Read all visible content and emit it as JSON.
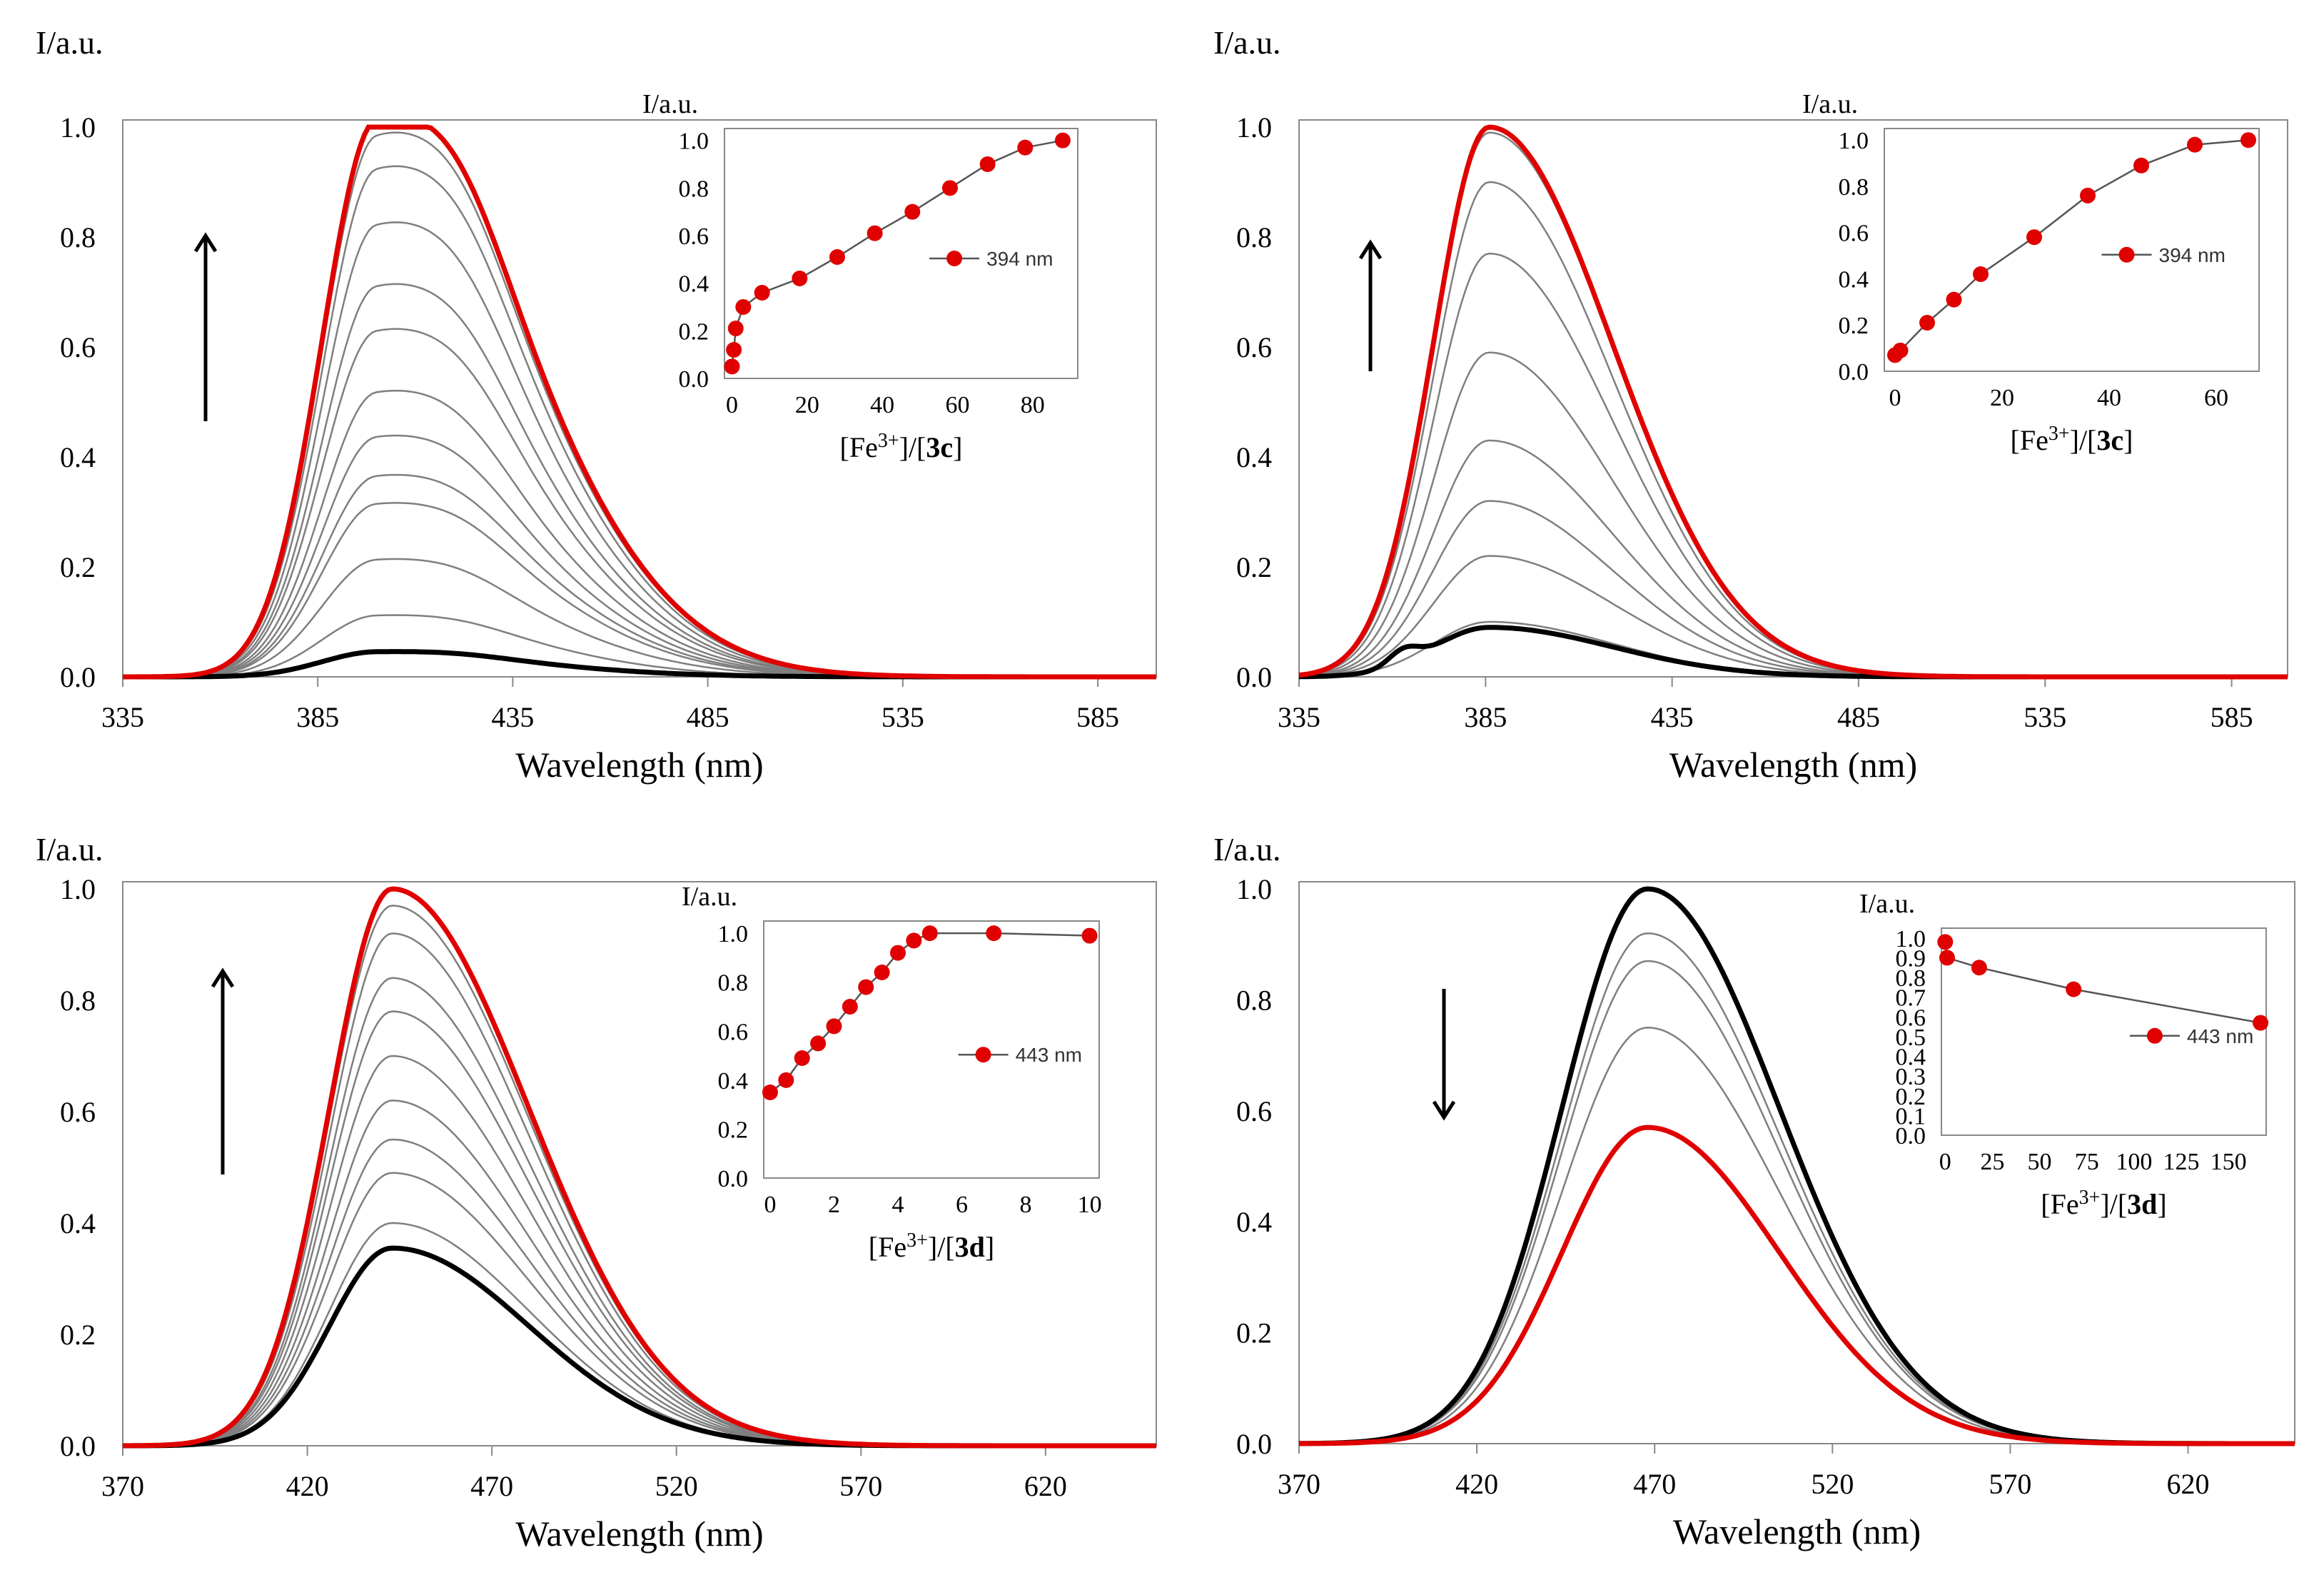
{
  "chart_data": [
    {
      "type": "line",
      "panel": "top-left",
      "ylabel": "I/a.u.",
      "xlabel": "Wavelength",
      "xunit": "(nm)",
      "xlim": [
        335,
        600
      ],
      "ylim": [
        0,
        1.0
      ],
      "xticks": [
        "335",
        "385",
        "435",
        "485",
        "535",
        "585"
      ],
      "yticks": [
        "0.0",
        "0.2",
        "0.4",
        "0.6",
        "0.8",
        "1.0"
      ],
      "arrow": "up",
      "spectra": {
        "initial_peak": 0.045,
        "final_peak": 1.0,
        "intermediate_peaks": [
          0.11,
          0.21,
          0.31,
          0.36,
          0.43,
          0.51,
          0.62,
          0.7,
          0.81,
          0.91,
          0.97
        ],
        "peak_wavelength": 400
      },
      "inset": {
        "ylabel": "I/a.u.",
        "xlabel_prefix": "[Fe",
        "xlabel_sup": "3+",
        "xlabel_mid": "]/[",
        "xlabel_bold": "3c",
        "xlabel_suffix": "]",
        "legend": "394 nm",
        "xlim": [
          -2,
          92
        ],
        "ylim": [
          0,
          1.05
        ],
        "xticks": [
          "0",
          "20",
          "40",
          "60",
          "80"
        ],
        "yticks": [
          "0.0",
          "0.2",
          "0.4",
          "0.6",
          "0.8",
          "1.0"
        ],
        "x": [
          0,
          0.5,
          1,
          3,
          8,
          18,
          28,
          38,
          48,
          58,
          68,
          78,
          88
        ],
        "y": [
          0.05,
          0.12,
          0.21,
          0.3,
          0.36,
          0.42,
          0.51,
          0.61,
          0.7,
          0.8,
          0.9,
          0.97,
          1.0
        ]
      }
    },
    {
      "type": "line",
      "panel": "top-right",
      "ylabel": "I/a.u.",
      "xlabel": "Wavelength",
      "xunit": "(nm)",
      "xlim": [
        335,
        600
      ],
      "ylim": [
        0,
        1.0
      ],
      "xticks": [
        "335",
        "385",
        "435",
        "485",
        "535",
        "585"
      ],
      "yticks": [
        "0.0",
        "0.2",
        "0.4",
        "0.6",
        "0.8",
        "1.0"
      ],
      "arrow": "up",
      "spectra": {
        "initial_peak": 0.09,
        "final_peak": 1.0,
        "intermediate_peaks": [
          0.1,
          0.22,
          0.32,
          0.43,
          0.59,
          0.77,
          0.9,
          0.99
        ],
        "peak_wavelength": 386
      },
      "inset": {
        "ylabel": "I/a.u.",
        "xlabel_prefix": "[Fe",
        "xlabel_sup": "3+",
        "xlabel_mid": "]/[",
        "xlabel_bold": "3c",
        "xlabel_suffix": "]",
        "legend": "394 nm",
        "xlim": [
          -2,
          68
        ],
        "ylim": [
          0,
          1.05
        ],
        "xticks": [
          "0",
          "20",
          "40",
          "60"
        ],
        "yticks": [
          "0.0",
          "0.2",
          "0.4",
          "0.6",
          "0.8",
          "1.0"
        ],
        "x": [
          0,
          1,
          6,
          11,
          16,
          26,
          36,
          46,
          56,
          66
        ],
        "y": [
          0.07,
          0.09,
          0.21,
          0.31,
          0.42,
          0.58,
          0.76,
          0.89,
          0.98,
          1.0
        ]
      }
    },
    {
      "type": "line",
      "panel": "bottom-left",
      "ylabel": "I/a.u.",
      "xlabel": "Wavelength",
      "xunit": "(nm)",
      "xlim": [
        370,
        650
      ],
      "ylim": [
        0,
        1.0
      ],
      "xticks": [
        "370",
        "420",
        "470",
        "520",
        "570",
        "620"
      ],
      "yticks": [
        "0.0",
        "0.2",
        "0.4",
        "0.6",
        "0.8",
        "1.0"
      ],
      "arrow": "up",
      "spectra": {
        "initial_peak": 0.355,
        "final_peak": 1.0,
        "intermediate_peaks": [
          0.4,
          0.49,
          0.55,
          0.62,
          0.7,
          0.78,
          0.84,
          0.92,
          0.97
        ],
        "peak_wavelength": 443
      },
      "inset": {
        "ylabel": "I/a.u.",
        "xlabel_prefix": "[Fe",
        "xlabel_sup": "3+",
        "xlabel_mid": "]/[",
        "xlabel_bold": "3d",
        "xlabel_suffix": "]",
        "legend": "443 nm",
        "xlim": [
          -0.2,
          10.3
        ],
        "ylim": [
          0,
          1.05
        ],
        "xticks": [
          "0",
          "2",
          "4",
          "6",
          "8",
          "10"
        ],
        "yticks": [
          "0.0",
          "0.2",
          "0.4",
          "0.6",
          "0.8",
          "1.0"
        ],
        "x": [
          0,
          0.5,
          1,
          1.5,
          2,
          2.5,
          3,
          3.5,
          4,
          4.5,
          5,
          7,
          10
        ],
        "y": [
          0.35,
          0.4,
          0.49,
          0.55,
          0.62,
          0.7,
          0.78,
          0.84,
          0.92,
          0.97,
          1.0,
          1.0,
          0.99
        ]
      }
    },
    {
      "type": "line",
      "panel": "bottom-right",
      "ylabel": "I/a.u.",
      "xlabel": "Wavelength",
      "xunit": "(nm)",
      "xlim": [
        370,
        650
      ],
      "ylim": [
        0,
        1.0
      ],
      "xticks": [
        "370",
        "420",
        "470",
        "520",
        "570",
        "620"
      ],
      "yticks": [
        "0.0",
        "0.2",
        "0.4",
        "0.6",
        "0.8",
        "1.0"
      ],
      "arrow": "down",
      "spectra": {
        "initial_peak": 1.0,
        "final_peak": 0.57,
        "intermediate_peaks": [
          0.92,
          0.87,
          0.75
        ],
        "peak_wavelength": 468
      },
      "inset": {
        "ylabel": "I/a.u.",
        "xlabel_prefix": "[Fe",
        "xlabel_sup": "3+",
        "xlabel_mid": "]/[",
        "xlabel_bold": "3d",
        "xlabel_suffix": "]",
        "legend": "443 nm",
        "xlim": [
          -2,
          170
        ],
        "ylim": [
          0,
          1.05
        ],
        "xticks": [
          "0",
          "25",
          "50",
          "75",
          "100",
          "125",
          "150"
        ],
        "yticks": [
          "0.0",
          "0.1",
          "0.2",
          "0.3",
          "0.4",
          "0.5",
          "0.6",
          "0.7",
          "0.8",
          "0.9",
          "1.0"
        ],
        "x": [
          0,
          1,
          18,
          68,
          167
        ],
        "y": [
          0.98,
          0.9,
          0.85,
          0.74,
          0.57
        ]
      }
    }
  ]
}
